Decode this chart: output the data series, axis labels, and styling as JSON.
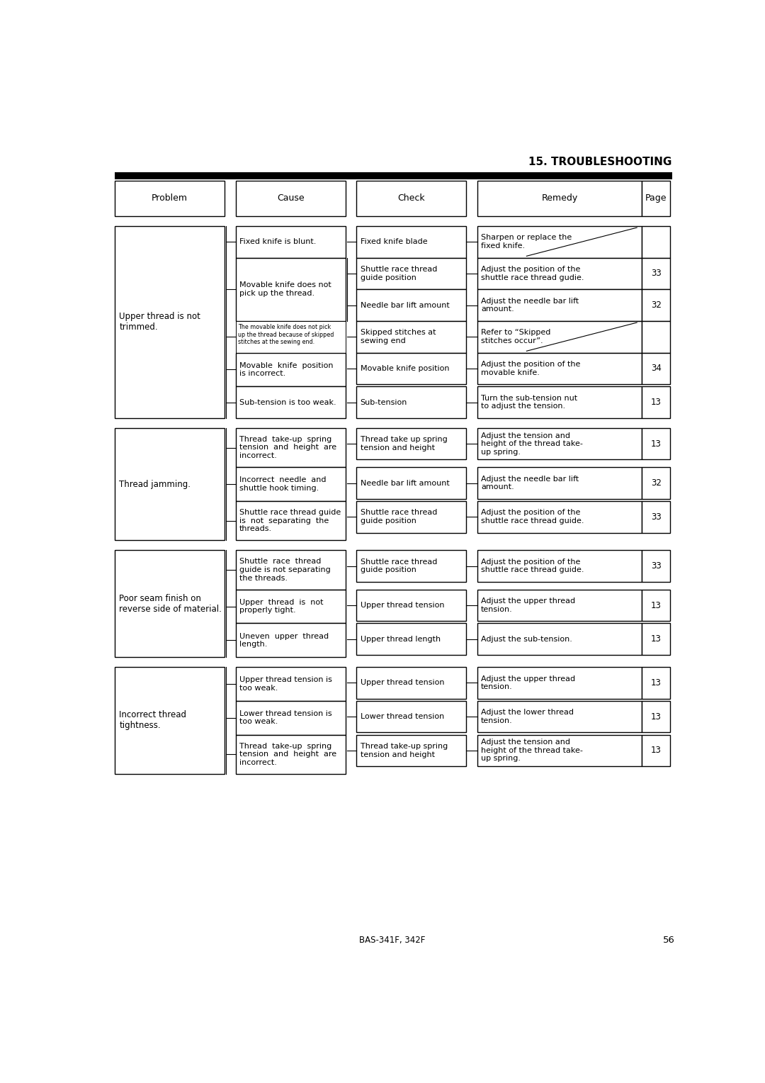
{
  "title": "15. TROUBLESHOOTING",
  "footer": "BAS-341F, 342F",
  "page_number": "56",
  "headers": [
    "Problem",
    "Cause",
    "Check",
    "Remedy",
    "Page"
  ],
  "bg_color": "#ffffff",
  "text_color": "#000000",
  "sections": [
    {
      "problem": "Upper thread is not\ntrimmed.",
      "causes": [
        {
          "cause_text": "Fixed knife is blunt.",
          "cause_small": false,
          "checks": [
            {
              "check_text": "Fixed knife blade",
              "remedy_text": "Sharpen or replace the\nfixed knife.",
              "page": "",
              "page_slash": true
            }
          ]
        },
        {
          "cause_text": "Movable knife does not\npick up the thread.",
          "cause_small": false,
          "checks": [
            {
              "check_text": "Shuttle race thread\nguide position",
              "remedy_text": "Adjust the position of the\nshuttle race thread gudie.",
              "page": "33",
              "page_slash": false
            },
            {
              "check_text": "Needle bar lift amount",
              "remedy_text": "Adjust the needle bar lift\namount.",
              "page": "32",
              "page_slash": false
            }
          ]
        },
        {
          "cause_text": "The movable knife does not pick\nup the thread because of skipped\nstitches at the sewing end.",
          "cause_small": true,
          "checks": [
            {
              "check_text": "Skipped stitches at\nsewing end",
              "remedy_text": "Refer to “Skipped\nstitches occur”.",
              "page": "",
              "page_slash": true
            }
          ]
        },
        {
          "cause_text": "Movable  knife  position\nis incorrect.",
          "cause_small": false,
          "checks": [
            {
              "check_text": "Movable knife position",
              "remedy_text": "Adjust the position of the\nmovable knife.",
              "page": "34",
              "page_slash": false
            }
          ]
        },
        {
          "cause_text": "Sub-tension is too weak.",
          "cause_small": false,
          "checks": [
            {
              "check_text": "Sub-tension",
              "remedy_text": "Turn the sub-tension nut\nto adjust the tension.",
              "page": "13",
              "page_slash": false
            }
          ]
        }
      ]
    },
    {
      "problem": "Thread jamming.",
      "causes": [
        {
          "cause_text": "Thread  take-up  spring\ntension  and  height  are\nincorrect.",
          "cause_small": false,
          "checks": [
            {
              "check_text": "Thread take up spring\ntension and height",
              "remedy_text": "Adjust the tension and\nheight of the thread take-\nup spring.",
              "page": "13",
              "page_slash": false
            }
          ]
        },
        {
          "cause_text": "Incorrect  needle  and\nshuttle hook timing.",
          "cause_small": false,
          "checks": [
            {
              "check_text": "Needle bar lift amount",
              "remedy_text": "Adjust the needle bar lift\namount.",
              "page": "32",
              "page_slash": false
            }
          ]
        },
        {
          "cause_text": "Shuttle race thread guide\nis  not  separating  the\nthreads.",
          "cause_small": false,
          "checks": [
            {
              "check_text": "Shuttle race thread\nguide position",
              "remedy_text": "Adjust the position of the\nshuttle race thread guide.",
              "page": "33",
              "page_slash": false
            }
          ]
        }
      ]
    },
    {
      "problem": "Poor seam finish on\nreverse side of material.",
      "causes": [
        {
          "cause_text": "Shuttle  race  thread\nguide is not separating\nthe threads.",
          "cause_small": false,
          "checks": [
            {
              "check_text": "Shuttle race thread\nguide position",
              "remedy_text": "Adjust the position of the\nshuttle race thread guide.",
              "page": "33",
              "page_slash": false
            }
          ]
        },
        {
          "cause_text": "Upper  thread  is  not\nproperly tight.",
          "cause_small": false,
          "checks": [
            {
              "check_text": "Upper thread tension",
              "remedy_text": "Adjust the upper thread\ntension.",
              "page": "13",
              "page_slash": false
            }
          ]
        },
        {
          "cause_text": "Uneven  upper  thread\nlength.",
          "cause_small": false,
          "checks": [
            {
              "check_text": "Upper thread length",
              "remedy_text": "Adjust the sub-tension.",
              "page": "13",
              "page_slash": false
            }
          ]
        }
      ]
    },
    {
      "problem": "Incorrect thread\ntightness.",
      "causes": [
        {
          "cause_text": "Upper thread tension is\ntoo weak.",
          "cause_small": false,
          "checks": [
            {
              "check_text": "Upper thread tension",
              "remedy_text": "Adjust the upper thread\ntension.",
              "page": "13",
              "page_slash": false
            }
          ]
        },
        {
          "cause_text": "Lower thread tension is\ntoo weak.",
          "cause_small": false,
          "checks": [
            {
              "check_text": "Lower thread tension",
              "remedy_text": "Adjust the lower thread\ntension.",
              "page": "13",
              "page_slash": false
            }
          ]
        },
        {
          "cause_text": "Thread  take-up  spring\ntension  and  height  are\nincorrect.",
          "cause_small": false,
          "checks": [
            {
              "check_text": "Thread take-up spring\ntension and height",
              "remedy_text": "Adjust the tension and\nheight of the thread take-\nup spring.",
              "page": "13",
              "page_slash": false
            }
          ]
        }
      ]
    }
  ]
}
